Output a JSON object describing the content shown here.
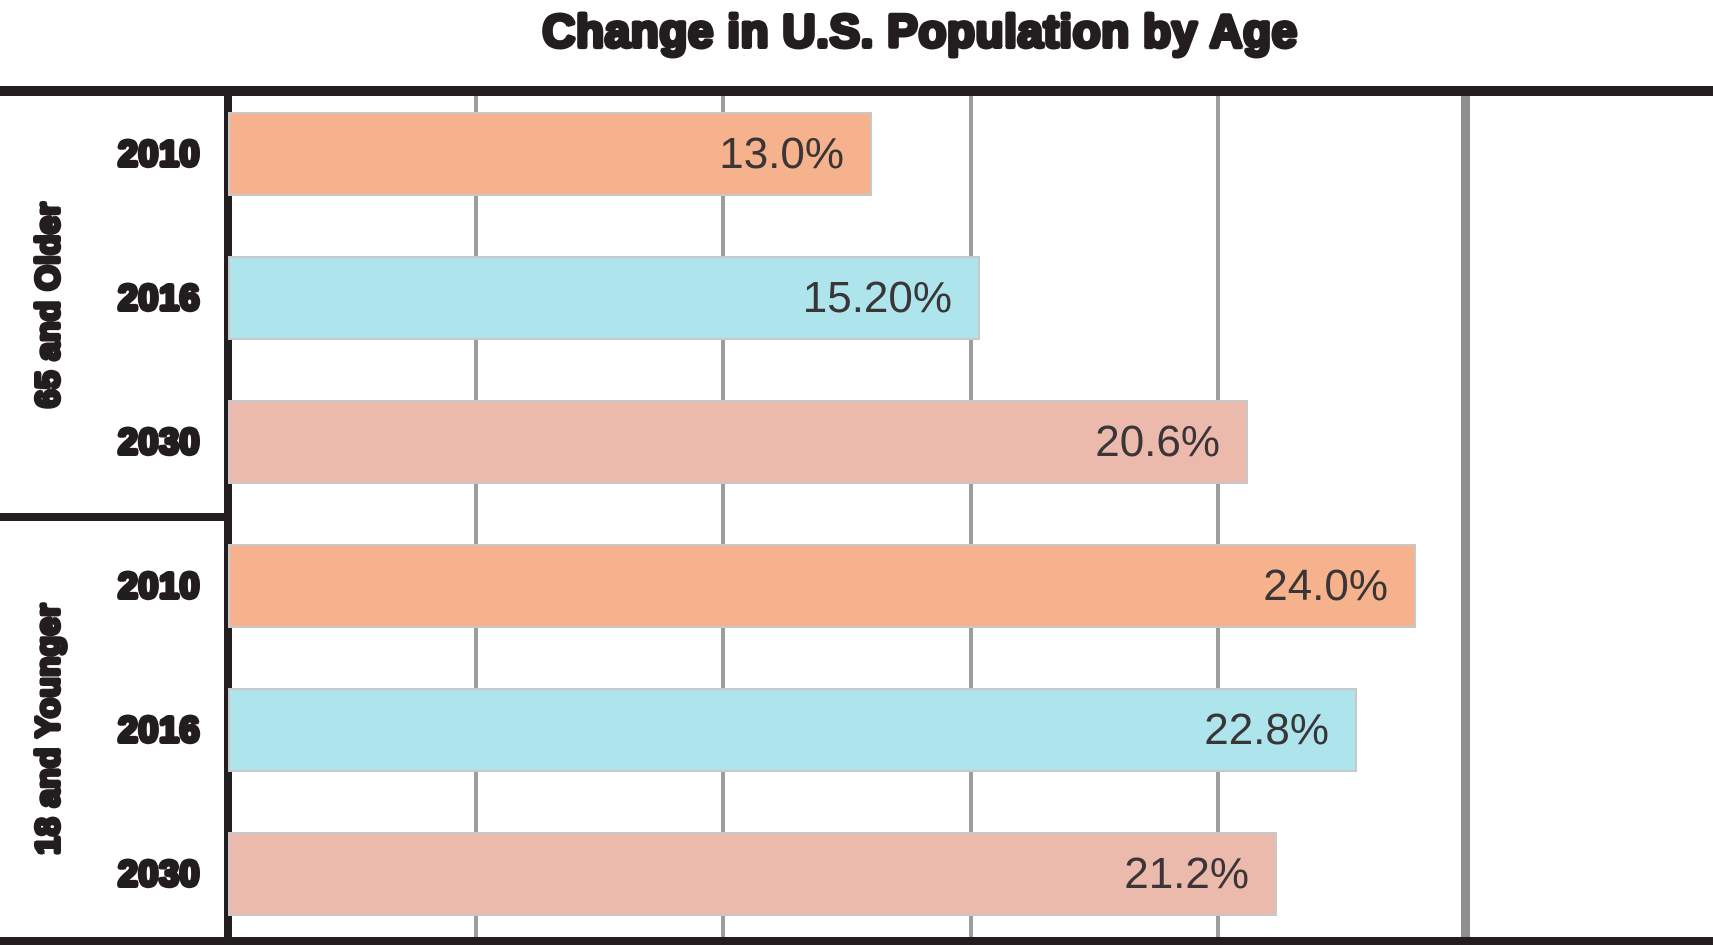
{
  "title": "Change in U.S. Population by Age",
  "colors": {
    "salmon": "#f5b28d",
    "cyan": "#aee4ec",
    "rose": "#ecb9ad",
    "bar_border": "#c8c8c8",
    "gridline": "#9d9d9d",
    "gridline_major": "#8f8f8f",
    "frame_black": "#221e1f",
    "value_text": "#3a3536"
  },
  "chart_data": {
    "type": "bar",
    "orientation": "horizontal",
    "title": "Change in U.S. Population by Age",
    "xlabel": "",
    "ylabel": "",
    "xlim": [
      0,
      30
    ],
    "gridline_interval_pct": 5,
    "major_gridline_at_pct": 25,
    "grid": true,
    "legend": false,
    "value_labels_inside_bars": true,
    "groups": [
      {
        "label": "65 and Older",
        "bars": [
          {
            "year": "2010",
            "value": 13.0,
            "label": "13.0%",
            "color_key": "salmon"
          },
          {
            "year": "2016",
            "value": 15.2,
            "label": "15.20%",
            "color_key": "cyan"
          },
          {
            "year": "2030",
            "value": 20.6,
            "label": "20.6%",
            "color_key": "rose"
          }
        ]
      },
      {
        "label": "18 and Younger",
        "bars": [
          {
            "year": "2010",
            "value": 24.0,
            "label": "24.0%",
            "color_key": "salmon"
          },
          {
            "year": "2016",
            "value": 22.8,
            "label": "22.8%",
            "color_key": "cyan"
          },
          {
            "year": "2030",
            "value": 21.2,
            "label": "21.2%",
            "color_key": "rose"
          }
        ]
      }
    ]
  }
}
